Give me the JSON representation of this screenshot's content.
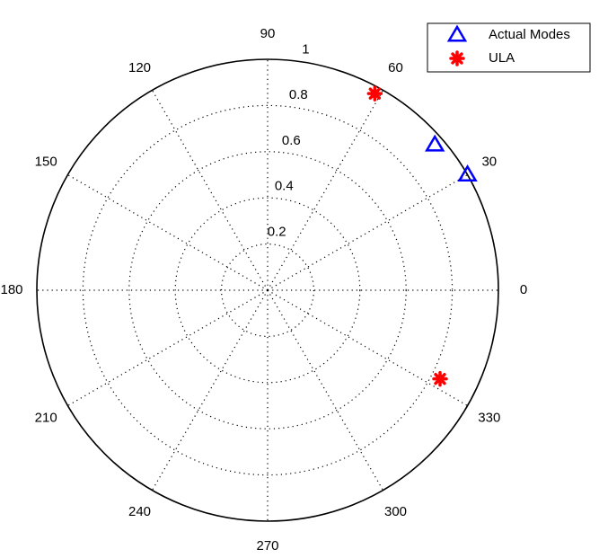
{
  "chart_data": {
    "type": "polar",
    "series": [
      {
        "name": "Actual Modes",
        "color": "#0000ff",
        "marker": "triangle",
        "theta": [
          30,
          41
        ],
        "r": [
          1.0,
          0.96
        ]
      },
      {
        "name": "ULA",
        "color": "#ff0000",
        "marker": "star",
        "theta": [
          61.4,
          332.8
        ],
        "r": [
          0.97,
          0.84
        ]
      }
    ],
    "rlim": [
      0,
      1
    ],
    "rticks": [
      0.2,
      0.4,
      0.6,
      0.8,
      1
    ],
    "thetaticks": [
      0,
      30,
      60,
      90,
      120,
      150,
      180,
      210,
      240,
      270,
      300,
      330
    ],
    "grid": true,
    "legend": "upper right"
  }
}
